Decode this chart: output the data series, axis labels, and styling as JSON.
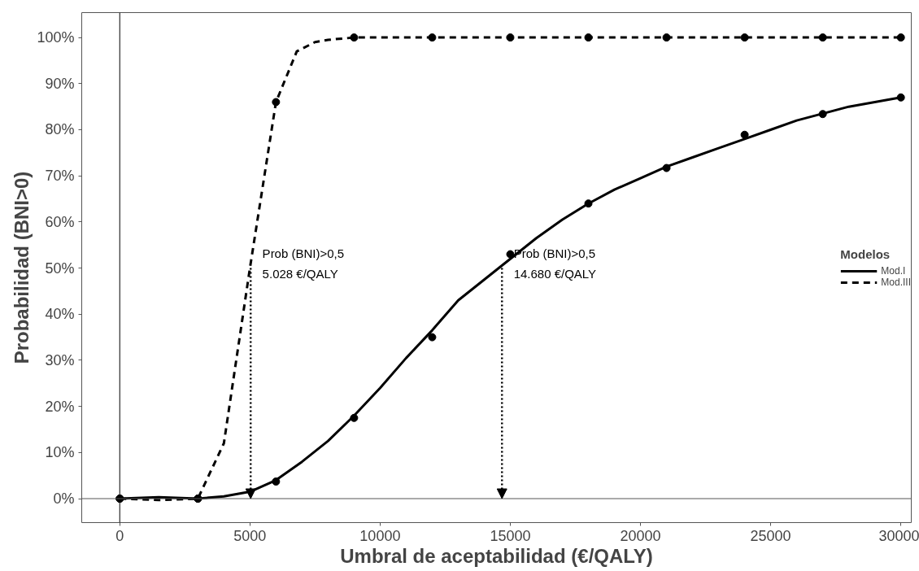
{
  "chart_data": {
    "type": "line",
    "xlabel": "Umbral de aceptabilidad (€/QALY)",
    "ylabel": "Probabilidad (BNI>0)",
    "legend_title": "Modelos",
    "xlim": [
      -1460,
      30400
    ],
    "xticks": [
      0,
      5000,
      10000,
      15000,
      20000,
      25000,
      30000
    ],
    "ylim": [
      -5.2,
      105.4
    ],
    "yticks": [
      {
        "value": 0,
        "label": "0%"
      },
      {
        "value": 10,
        "label": "10%"
      },
      {
        "value": 20,
        "label": "20%"
      },
      {
        "value": 30,
        "label": "30%"
      },
      {
        "value": 40,
        "label": "40%"
      },
      {
        "value": 50,
        "label": "50%"
      },
      {
        "value": 60,
        "label": "60%"
      },
      {
        "value": 70,
        "label": "70%"
      },
      {
        "value": 80,
        "label": "80%"
      },
      {
        "value": 90,
        "label": "90%"
      },
      {
        "value": 100,
        "label": "100%"
      }
    ],
    "grid": false,
    "legend": "right",
    "series": [
      {
        "name": "Mod.I",
        "color": "#000000",
        "line_style": "solid",
        "x": [
          0,
          1500,
          3000,
          4000,
          5000,
          6000,
          7000,
          8000,
          9000,
          10000,
          11000,
          12000,
          13000,
          14000,
          15000,
          16000,
          17000,
          18000,
          19000,
          20000,
          21000,
          22000,
          23000,
          24000,
          25000,
          26000,
          27000,
          28000,
          29000,
          30000
        ],
        "values": [
          0,
          0.3,
          0,
          0.5,
          1.5,
          4,
          8,
          12.5,
          18,
          24,
          30.5,
          36.5,
          43,
          47.5,
          52,
          56.5,
          60.5,
          64,
          67,
          69.5,
          72,
          74,
          76,
          78,
          80,
          82,
          83.5,
          85,
          86,
          87
        ]
      },
      {
        "name": "Mod.III",
        "color": "#000000",
        "line_style": "dashed",
        "x": [
          0,
          1500,
          3000,
          4000,
          5000,
          6000,
          6800,
          7500,
          8000,
          9000,
          12000,
          15000,
          18000,
          21000,
          24000,
          27000,
          30000
        ],
        "values": [
          0,
          -0.3,
          0,
          12,
          50,
          86,
          97,
          99,
          99.5,
          100,
          100,
          100,
          100,
          100,
          100,
          100,
          100
        ]
      },
      {
        "type": "scatter",
        "marker": "circle",
        "color": "#000000",
        "x": [
          0,
          3000,
          6000,
          9000,
          12000,
          15000,
          18000,
          21000,
          24000,
          27000,
          30000
        ],
        "values": [
          0,
          0,
          3.7,
          17.5,
          35,
          53,
          64,
          71.7,
          78.9,
          83.4,
          87
        ]
      },
      {
        "type": "scatter",
        "marker": "circle",
        "color": "#000000",
        "x": [
          0,
          3000,
          6000,
          9000,
          12000,
          15000,
          18000,
          21000,
          24000,
          27000,
          30000
        ],
        "values": [
          0,
          0,
          86,
          100,
          100,
          100,
          100,
          100,
          100,
          100,
          100
        ]
      }
    ],
    "ref_lines": [
      {
        "axis": "x",
        "value": 0,
        "color": "#000000"
      },
      {
        "axis": "y",
        "value": 0,
        "color": "#555555"
      }
    ],
    "annotations": [
      {
        "text": "Prob (BNI)>0,5\n5.028 €/QALY",
        "x": 5028,
        "y": 50
      },
      {
        "text": "Prob (BNI)>0,5\n14.680 €/QALY",
        "x": 14680,
        "y": 50
      }
    ]
  }
}
